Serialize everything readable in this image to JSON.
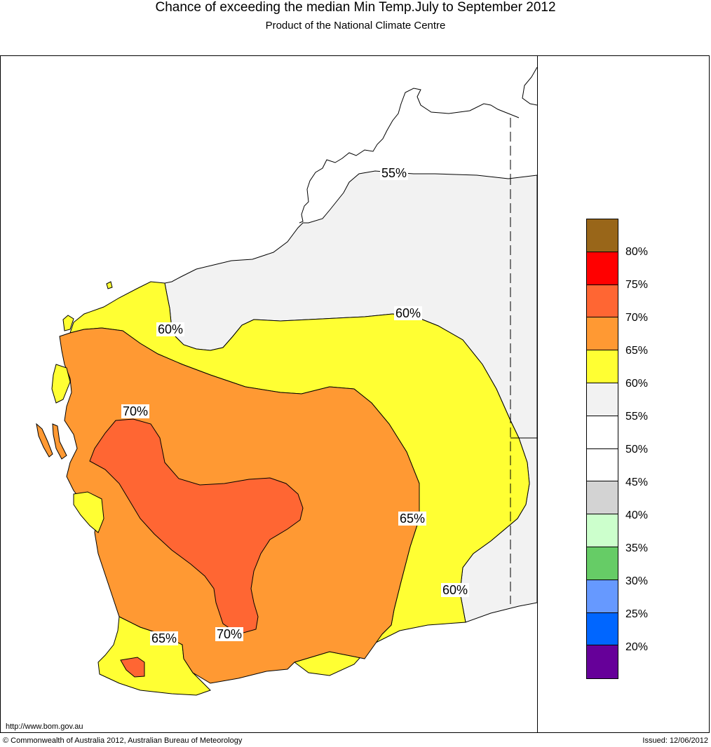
{
  "header": {
    "title": "Chance of exceeding the median Min Temp.July to September 2012",
    "subtitle": "Product of the National Climate Centre"
  },
  "map": {
    "contour_labels": [
      "55%",
      "60%",
      "60%",
      "70%",
      "65%",
      "60%",
      "65%",
      "70%"
    ],
    "region_colors": {
      "55-60": "#f2f2f2",
      "60-65": "#ffff33",
      "65-70": "#ff9933",
      "70-75": "#ff6633"
    }
  },
  "legend": {
    "items": [
      {
        "label": "80%",
        "color": "#996619"
      },
      {
        "label": "75%",
        "color": "#ff0000"
      },
      {
        "label": "70%",
        "color": "#ff6633"
      },
      {
        "label": "65%",
        "color": "#ff9933"
      },
      {
        "label": "60%",
        "color": "#ffff33"
      },
      {
        "label": "55%",
        "color": "#f2f2f2"
      },
      {
        "label": "50%",
        "color": "#ffffff"
      },
      {
        "label": "45%",
        "color": "#ffffff"
      },
      {
        "label": "40%",
        "color": "#d3d3d3"
      },
      {
        "label": "35%",
        "color": "#ccffcc"
      },
      {
        "label": "30%",
        "color": "#66cc66"
      },
      {
        "label": "25%",
        "color": "#6699ff"
      },
      {
        "label": "20%",
        "color": "#0066ff"
      },
      {
        "label": "",
        "color": "#660099"
      }
    ]
  },
  "footer": {
    "url": "http://www.bom.gov.au",
    "copyright": "© Commonwealth of Australia 2012, Australian Bureau of Meteorology",
    "issued": "Issued: 12/06/2012"
  }
}
